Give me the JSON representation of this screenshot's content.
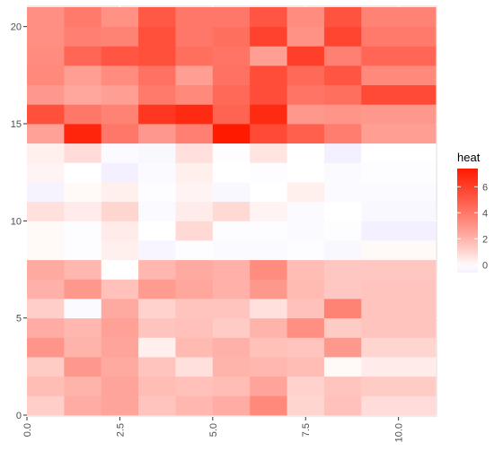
{
  "chart_data": {
    "type": "heatmap",
    "x_range": [
      0,
      11
    ],
    "y_range": [
      0,
      21
    ],
    "x_ticks": [
      0,
      2.5,
      5,
      7.5,
      10
    ],
    "x_tick_labels": [
      "0.0",
      "2.5",
      "5.0",
      "7.5",
      "10.0"
    ],
    "y_ticks": [
      0,
      5,
      10,
      15,
      20
    ],
    "y_tick_labels": [
      "0",
      "5",
      "10",
      "15",
      "20"
    ],
    "grid": true,
    "legend": {
      "title": "heat",
      "placement": "right",
      "range": [
        -0.6,
        7.4
      ],
      "breaks": [
        0,
        2,
        4,
        6
      ],
      "break_labels": [
        "0",
        "2",
        "4",
        "6"
      ],
      "low_color": "#f4f0ff",
      "mid_color": "#ffffff",
      "high_color": "#ff1a00"
    },
    "panel_background": "#ebebeb",
    "grid_color": "#ffffff",
    "cols": 11,
    "rows_bottom_to_top": [
      [
        1.2,
        2.2,
        2.5,
        1.5,
        1.9,
        2.2,
        3.4,
        1.0,
        1.6,
        0.8,
        0.8
      ],
      [
        1.7,
        2.0,
        2.5,
        1.7,
        1.6,
        1.7,
        2.5,
        1.1,
        1.5,
        1.3,
        1.3
      ],
      [
        1.3,
        2.9,
        2.3,
        1.5,
        0.7,
        2.0,
        1.9,
        1.7,
        0.1,
        0.4,
        0.4
      ],
      [
        3.0,
        2.0,
        2.5,
        0.3,
        1.8,
        2.1,
        1.6,
        1.5,
        2.9,
        1.0,
        1.0
      ],
      [
        2.2,
        1.9,
        2.6,
        1.5,
        1.6,
        1.3,
        2.0,
        3.2,
        1.3,
        1.5,
        1.5
      ],
      [
        1.2,
        -0.2,
        2.3,
        1.1,
        1.5,
        1.5,
        0.7,
        1.6,
        3.6,
        1.5,
        1.5
      ],
      [
        2.1,
        2.9,
        1.6,
        2.8,
        2.4,
        2.1,
        2.9,
        1.8,
        1.4,
        1.5,
        1.5
      ],
      [
        2.3,
        1.9,
        0.0,
        1.9,
        2.3,
        2.1,
        3.3,
        1.7,
        1.4,
        1.4,
        1.4
      ],
      [
        0.1,
        -0.1,
        0.3,
        -0.4,
        -0.1,
        -0.2,
        -0.2,
        -0.1,
        -0.3,
        0.1,
        0.1
      ],
      [
        0.1,
        -0.1,
        0.4,
        0.0,
        0.9,
        -0.1,
        -0.1,
        -0.2,
        -0.1,
        -0.6,
        -0.6
      ],
      [
        0.7,
        0.4,
        1.0,
        -0.2,
        0.4,
        0.9,
        0.2,
        -0.2,
        0.0,
        -0.3,
        -0.3
      ],
      [
        -0.5,
        0.1,
        0.3,
        -0.1,
        0.2,
        -0.3,
        0.0,
        0.3,
        -0.2,
        -0.2,
        -0.2
      ],
      [
        0.2,
        0.0,
        -0.6,
        -0.2,
        0.3,
        0.0,
        -0.1,
        0.0,
        -0.2,
        -0.1,
        -0.1
      ],
      [
        0.3,
        0.8,
        -0.2,
        -0.3,
        0.7,
        -0.1,
        0.6,
        0.0,
        -0.8,
        0.0,
        0.0
      ],
      [
        2.6,
        7.0,
        4.0,
        2.9,
        3.7,
        7.5,
        5.6,
        4.8,
        3.8,
        2.7,
        2.7
      ],
      [
        5.4,
        4.0,
        3.6,
        6.3,
        6.8,
        4.7,
        6.8,
        2.9,
        3.0,
        2.9,
        2.9
      ],
      [
        2.9,
        2.4,
        2.7,
        3.9,
        3.4,
        4.5,
        5.5,
        4.1,
        4.3,
        5.6,
        5.6
      ],
      [
        3.4,
        2.7,
        3.3,
        4.2,
        2.7,
        4.2,
        5.5,
        4.5,
        5.2,
        3.4,
        3.4
      ],
      [
        3.3,
        4.6,
        5.2,
        5.4,
        4.3,
        4.1,
        2.7,
        6.0,
        3.7,
        4.6,
        4.6
      ],
      [
        3.2,
        3.7,
        3.6,
        5.4,
        4.0,
        4.3,
        5.9,
        3.1,
        5.8,
        3.9,
        3.9
      ],
      [
        3.2,
        3.9,
        3.1,
        5.1,
        4.0,
        4.0,
        5.2,
        3.3,
        5.3,
        3.6,
        3.6
      ]
    ]
  }
}
